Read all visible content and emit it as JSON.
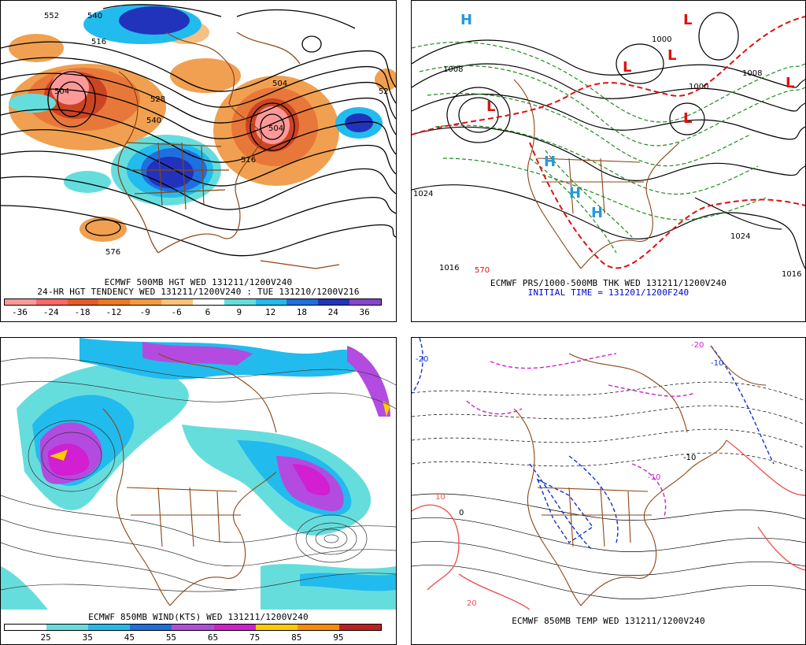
{
  "panels": {
    "hgt": {
      "caption1": "ECMWF 500MB HGT WED 131211/1200V240",
      "caption2": "24-HR HGT TENDENCY WED 131211/1200V240 : TUE 131210/1200V216",
      "scale_labels": [
        "-36",
        "-24",
        "-18",
        "-12",
        "-9",
        "-6",
        "6",
        "9",
        "12",
        "18",
        "24",
        "36"
      ],
      "scale_colors": [
        "#ff9999",
        "#ff6666",
        "#e85a2a",
        "#ee7722",
        "#f59a44",
        "#fbc27a",
        "#ffffff",
        "#66dddd",
        "#22bbee",
        "#1e6fe0",
        "#2233bb",
        "#8844cc"
      ],
      "contour_labels": [
        "552",
        "540",
        "516",
        "504",
        "528",
        "540",
        "504",
        "504",
        "516",
        "576",
        "52"
      ]
    },
    "prs": {
      "caption1": "ECMWF PRS/1000-500MB THK WED 131211/1200V240",
      "caption2": "INITIAL TIME = 131201/1200F240",
      "contour_labels": [
        "1024",
        "1016",
        "1024",
        "1016",
        "1000",
        "1008",
        "1000",
        "1008",
        "570"
      ],
      "centers": [
        "H",
        "L",
        "L",
        "L",
        "L",
        "L",
        "H",
        "H",
        "H",
        "L"
      ]
    },
    "wind": {
      "caption1": "ECMWF 850MB WIND(KTS) WED 131211/1200V240",
      "scale_labels": [
        "25",
        "35",
        "45",
        "55",
        "65",
        "75",
        "85",
        "95"
      ],
      "scale_colors": [
        "#ffffff",
        "#66dddd",
        "#22bbee",
        "#1e6fe0",
        "#b34be0",
        "#d11fd1",
        "#ffcc00",
        "#ff8c00",
        "#c02020"
      ]
    },
    "temp": {
      "caption1": "ECMWF 850MB TEMP WED 131211/1200V240",
      "contour_labels": [
        "-20",
        "-10",
        "-10",
        "0",
        "10",
        "20",
        "-20",
        "-10"
      ]
    }
  }
}
